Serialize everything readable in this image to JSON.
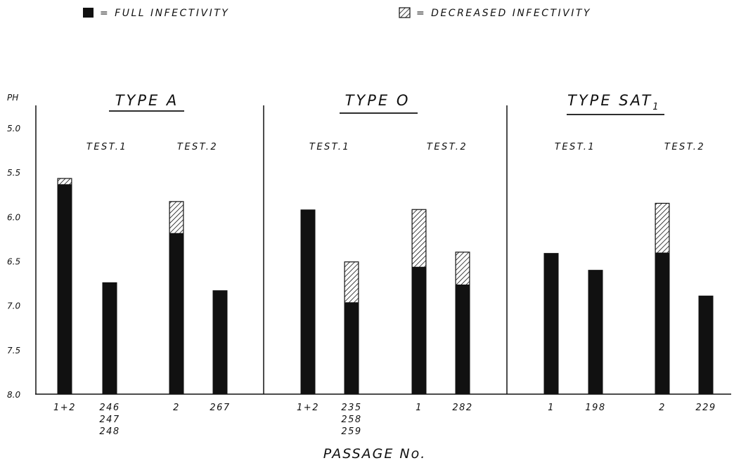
{
  "chart_data": {
    "type": "bar",
    "legend": [
      {
        "name": "= FULL INFECTIVITY",
        "color": "#111111",
        "pattern": "solid"
      },
      {
        "name": "= DECREASED INFECTIVITY",
        "color": "#111111",
        "pattern": "hatched"
      }
    ],
    "ylabel": "PH",
    "xlabel": "PASSAGE No.",
    "yticks": [
      "5.0",
      "5.5",
      "6.0",
      "6.5",
      "7.0",
      "7.5",
      "8.0"
    ],
    "ylim": [
      5.0,
      8.0
    ],
    "y_inverted": true,
    "panels": [
      {
        "title": "TYPE A",
        "tests": [
          {
            "label": "TEST.1",
            "bars": [
              {
                "passage": [
                  "1+2"
                ],
                "full_to": 5.64,
                "decreased_to": 5.57
              },
              {
                "passage": [
                  "246",
                  "247",
                  "248"
                ],
                "full_to": 6.74,
                "decreased_to": null
              }
            ]
          },
          {
            "label": "TEST.2",
            "bars": [
              {
                "passage": [
                  "2"
                ],
                "full_to": 6.19,
                "decreased_to": 5.83
              },
              {
                "passage": [
                  "267"
                ],
                "full_to": 6.83,
                "decreased_to": null
              }
            ]
          }
        ]
      },
      {
        "title": "TYPE O",
        "tests": [
          {
            "label": "TEST.1",
            "bars": [
              {
                "passage": [
                  "1+2"
                ],
                "full_to": 5.92,
                "decreased_to": null
              },
              {
                "passage": [
                  "235",
                  "258",
                  "259"
                ],
                "full_to": 6.97,
                "decreased_to": 6.51
              }
            ]
          },
          {
            "label": "TEST.2",
            "bars": [
              {
                "passage": [
                  "1"
                ],
                "full_to": 6.57,
                "decreased_to": 5.92
              },
              {
                "passage": [
                  "282"
                ],
                "full_to": 6.77,
                "decreased_to": 6.4
              }
            ]
          }
        ]
      },
      {
        "title": "TYPE SAT",
        "title_subscript": "1",
        "tests": [
          {
            "label": "TEST.1",
            "bars": [
              {
                "passage": [
                  "1"
                ],
                "full_to": 6.41,
                "decreased_to": null
              },
              {
                "passage": [
                  "198"
                ],
                "full_to": 6.6,
                "decreased_to": null
              }
            ]
          },
          {
            "label": "TEST.2",
            "bars": [
              {
                "passage": [
                  "2"
                ],
                "full_to": 6.41,
                "decreased_to": 5.85
              },
              {
                "passage": [
                  "229"
                ],
                "full_to": 6.89,
                "decreased_to": null
              }
            ]
          }
        ]
      }
    ]
  }
}
